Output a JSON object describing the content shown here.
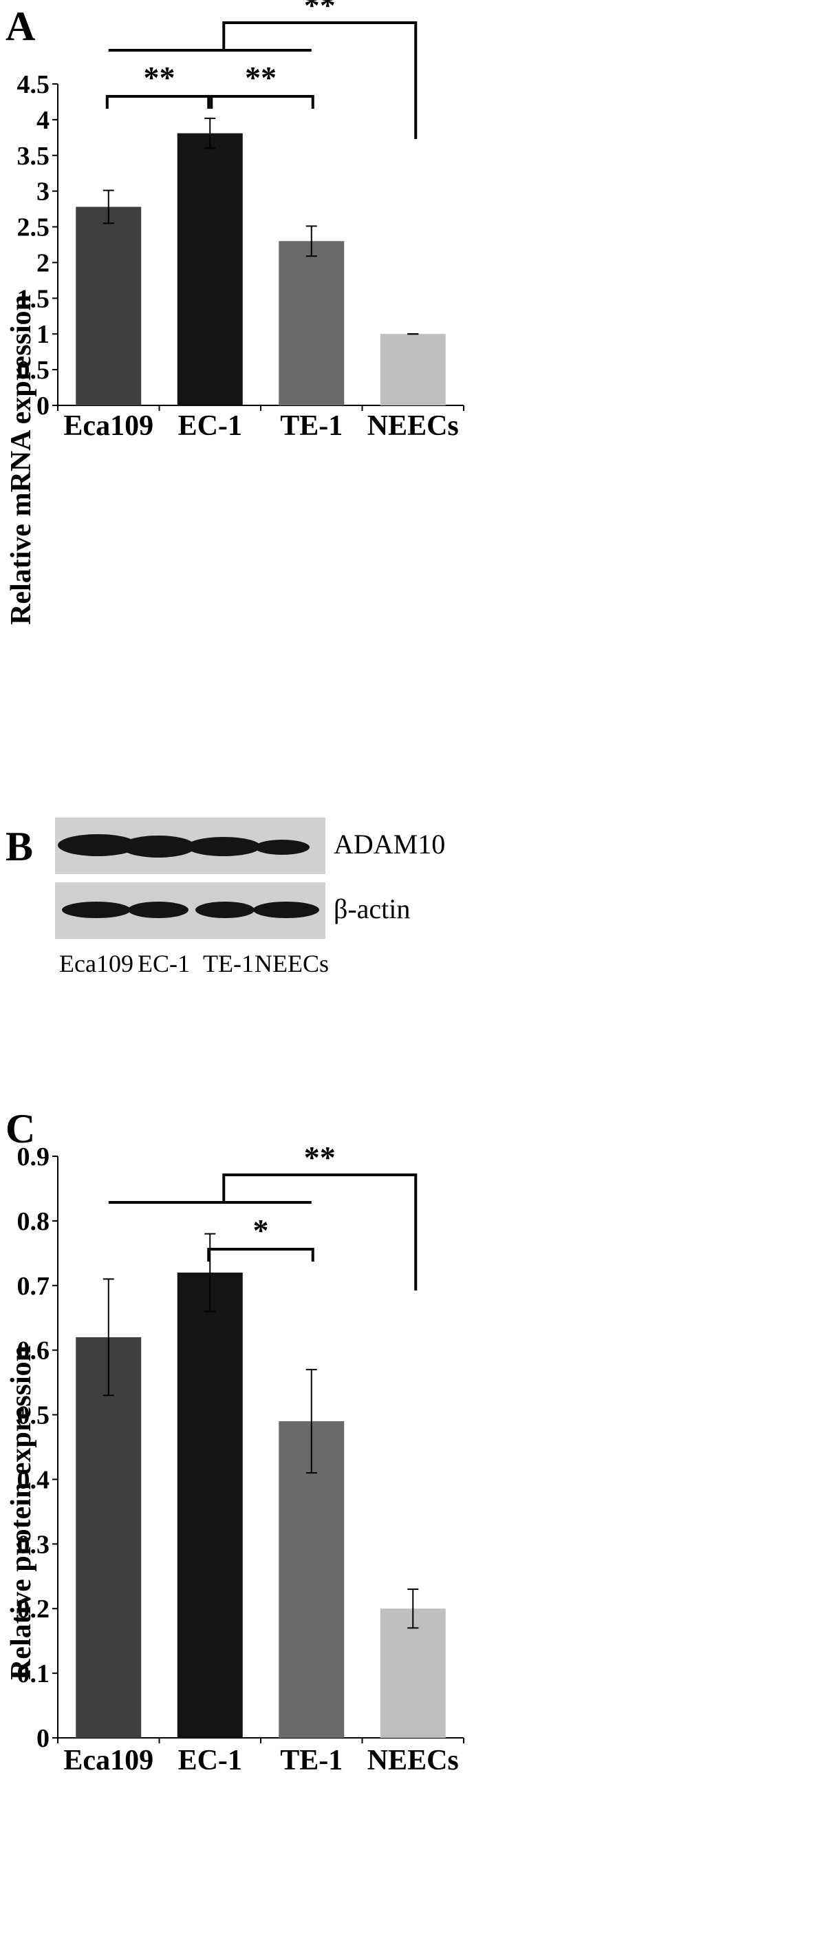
{
  "panels": {
    "a": {
      "letter": "A"
    },
    "b": {
      "letter": "B",
      "blot_rows": [
        "ADAM10",
        "β-actin"
      ],
      "lanes": [
        "Eca109",
        "EC-1",
        "TE-1",
        "NEECs"
      ]
    },
    "c": {
      "letter": "C"
    }
  },
  "colors": {
    "bars": [
      "#404040",
      "#141414",
      "#6a6a6a",
      "#bfbfbf"
    ],
    "axis": "#000000",
    "blot_background": "#cfcfcf",
    "band": "#141414"
  },
  "chart_data": [
    {
      "type": "bar",
      "title": "",
      "categories": [
        "Eca109",
        "EC-1",
        "TE-1",
        "NEECs"
      ],
      "values": [
        2.78,
        3.81,
        2.3,
        1.0
      ],
      "errors": [
        0.23,
        0.21,
        0.21,
        0.0
      ],
      "xlabel": "",
      "ylabel": "Relative mRNA expression",
      "ylim": [
        0,
        4.5
      ],
      "yticks": [
        "0",
        "0.5",
        "1",
        "1.5",
        "2",
        "2.5",
        "3",
        "3.5",
        "4",
        "4.5"
      ],
      "significance": [
        {
          "compare": [
            "Eca109",
            "EC-1"
          ],
          "label": "**"
        },
        {
          "compare": [
            "EC-1",
            "TE-1"
          ],
          "label": "**"
        },
        {
          "compare": [
            "Eca109, EC-1, TE-1",
            "NEECs"
          ],
          "label": "**"
        }
      ],
      "grid": false,
      "legend": "none"
    },
    {
      "type": "bar",
      "title": "",
      "categories": [
        "Eca109",
        "EC-1",
        "TE-1",
        "NEECs"
      ],
      "values": [
        0.62,
        0.72,
        0.49,
        0.2
      ],
      "errors": [
        0.09,
        0.06,
        0.08,
        0.03
      ],
      "xlabel": "",
      "ylabel": "Relative protein expression",
      "ylim": [
        0,
        0.9
      ],
      "yticks": [
        "0",
        "0.1",
        "0.2",
        "0.3",
        "0.4",
        "0.5",
        "0.6",
        "0.7",
        "0.8",
        "0.9"
      ],
      "significance": [
        {
          "compare": [
            "EC-1",
            "TE-1"
          ],
          "label": "*"
        },
        {
          "compare": [
            "Eca109, EC-1, TE-1",
            "NEECs"
          ],
          "label": "**"
        }
      ],
      "grid": false,
      "legend": "none"
    }
  ]
}
